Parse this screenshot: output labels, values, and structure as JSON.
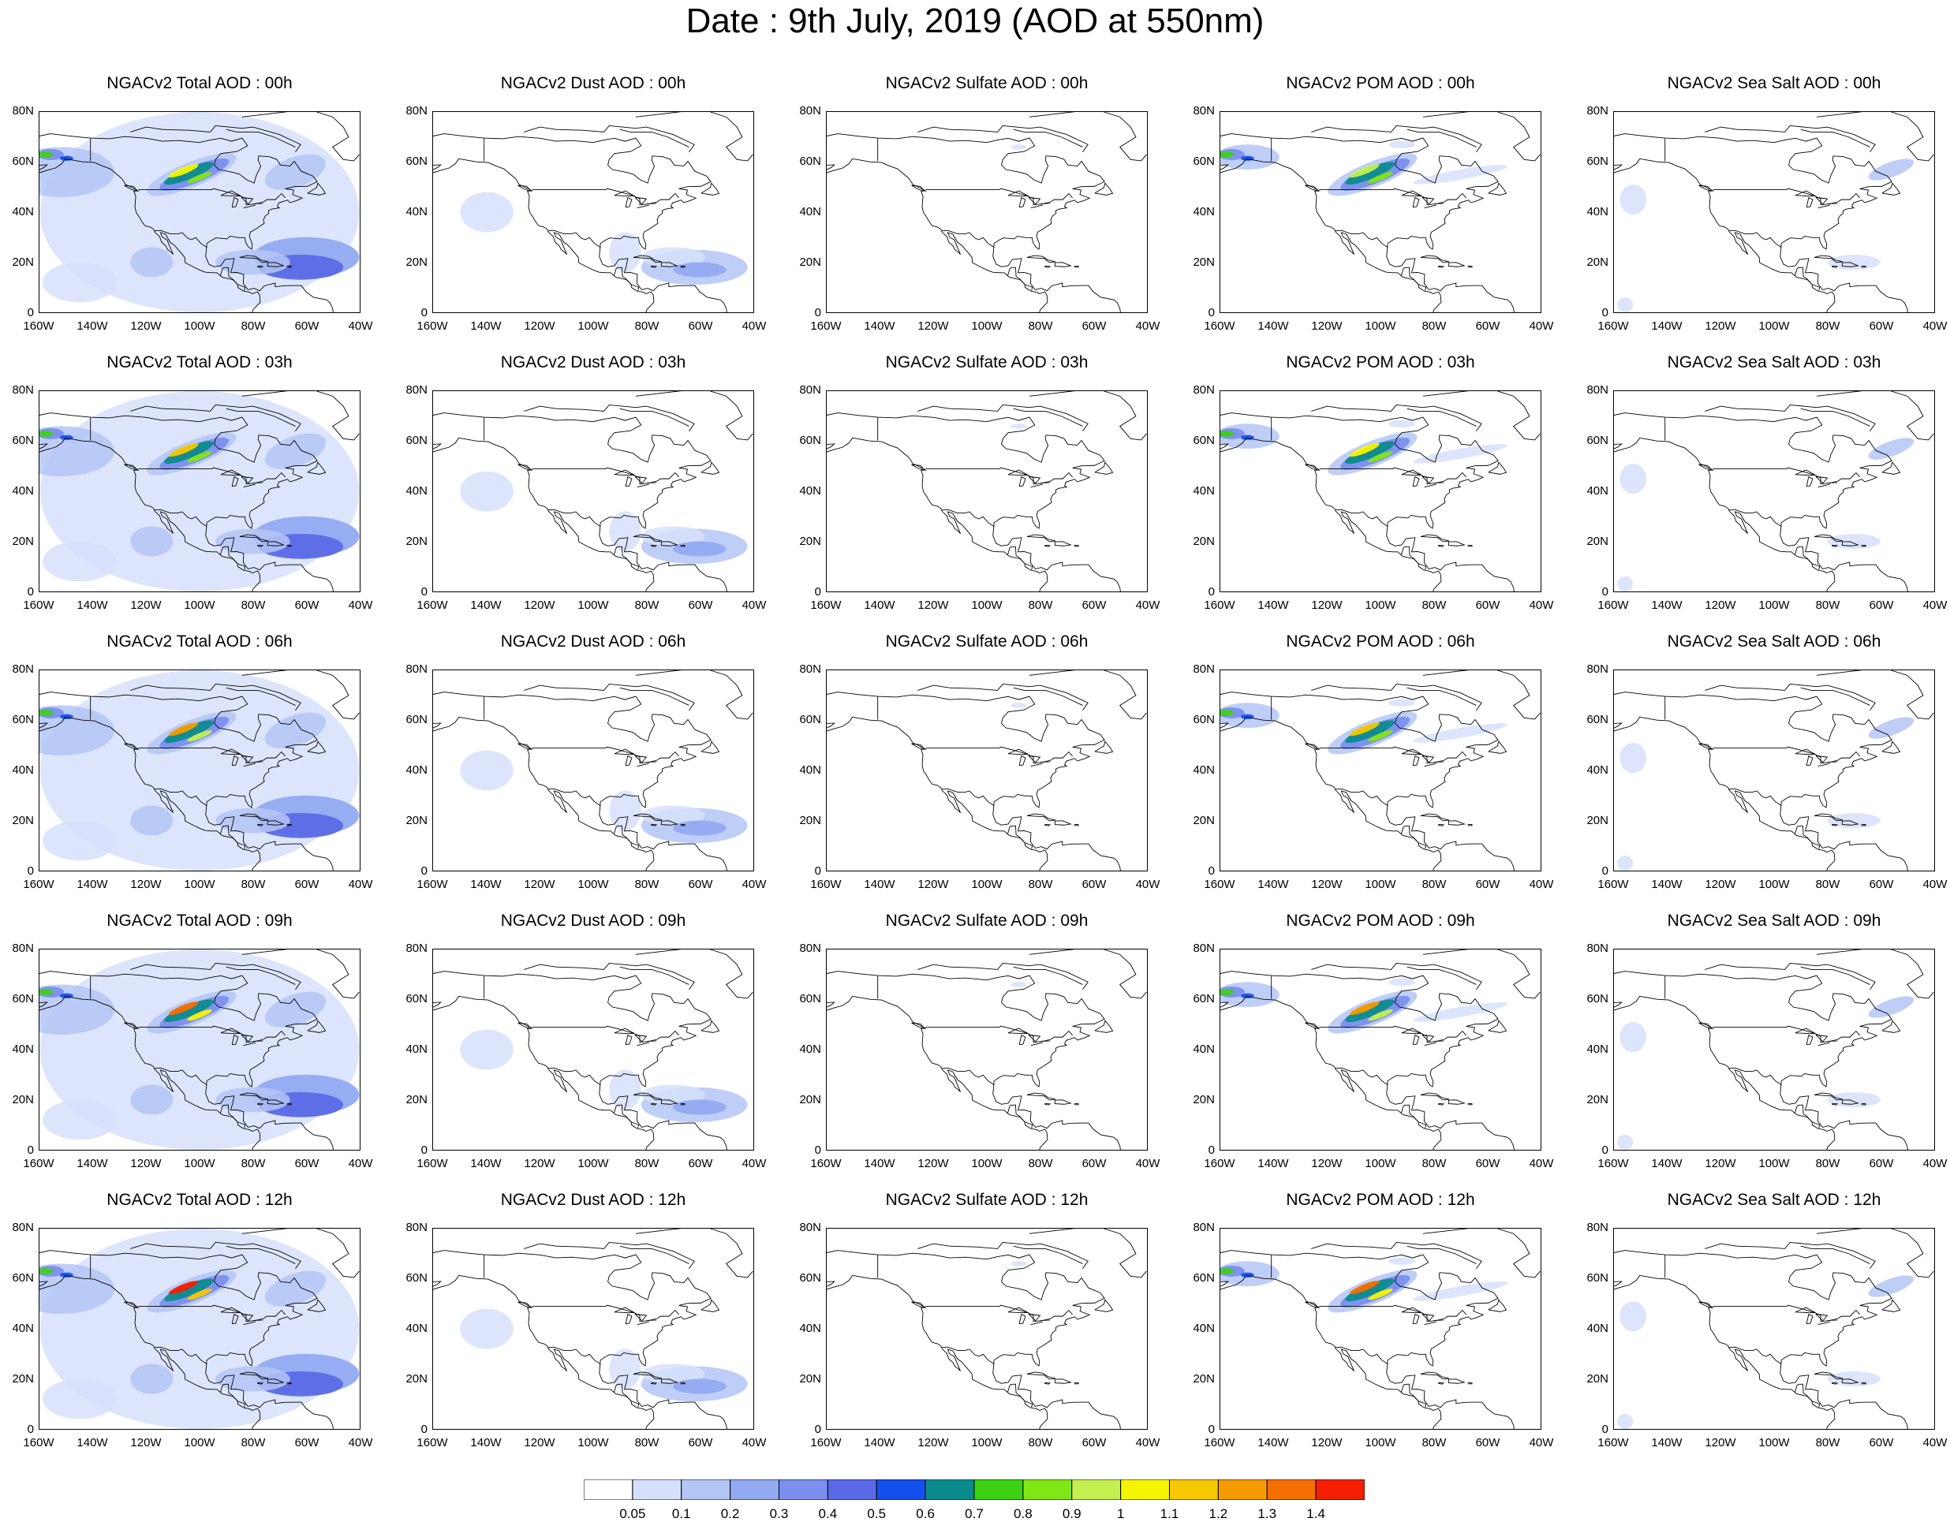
{
  "title": "Date : 9th July, 2019 (AOD at 550nm)",
  "x_ticks": [
    "160W",
    "140W",
    "120W",
    "100W",
    "80W",
    "60W",
    "40W"
  ],
  "y_ticks": [
    "80N",
    "60N",
    "40N",
    "20N",
    "0"
  ],
  "panels": [
    [
      "NGACv2 Total AOD : 00h",
      "NGACv2 Dust AOD : 00h",
      "NGACv2 Sulfate AOD : 00h",
      "NGACv2 POM AOD : 00h",
      "NGACv2 Sea Salt AOD : 00h"
    ],
    [
      "NGACv2 Total AOD : 03h",
      "NGACv2 Dust AOD : 03h",
      "NGACv2 Sulfate AOD : 03h",
      "NGACv2 POM AOD : 03h",
      "NGACv2 Sea Salt AOD : 03h"
    ],
    [
      "NGACv2 Total AOD : 06h",
      "NGACv2 Dust AOD : 06h",
      "NGACv2 Sulfate AOD : 06h",
      "NGACv2 POM AOD : 06h",
      "NGACv2 Sea Salt AOD : 06h"
    ],
    [
      "NGACv2 Total AOD : 09h",
      "NGACv2 Dust AOD : 09h",
      "NGACv2 Sulfate AOD : 09h",
      "NGACv2 POM AOD : 09h",
      "NGACv2 Sea Salt  AOD : 09h"
    ],
    [
      "NGACv2 Total AOD  : 12h",
      "NGACv2 Dust AOD : 12h",
      "NGACv2 Sulfate AOD : 12h",
      "NGACv2 POM  AOD : 12h",
      "NGACv2 Sea Salt  AOD : 12h"
    ]
  ],
  "colorbar": {
    "labels": [
      "0.05",
      "0.1",
      "0.2",
      "0.3",
      "0.4",
      "0.5",
      "0.6",
      "0.7",
      "0.8",
      "0.9",
      "1",
      "1.1",
      "1.2",
      "1.3",
      "1.4"
    ],
    "colors": [
      "#ffffff",
      "#d6e0fa",
      "#b4c6f6",
      "#92aaf2",
      "#7c8eee",
      "#5a6ae6",
      "#1450ee",
      "#0a8c8c",
      "#3cd214",
      "#82e614",
      "#c3f050",
      "#f5f500",
      "#f5c800",
      "#f59b00",
      "#f56e00",
      "#f51e00"
    ]
  },
  "fields": {
    "total": "Total AOD",
    "dust": "Dust AOD",
    "sulfate": "Sulfate AOD",
    "pom": "POM AOD",
    "seasalt": "Sea Salt AOD"
  }
}
